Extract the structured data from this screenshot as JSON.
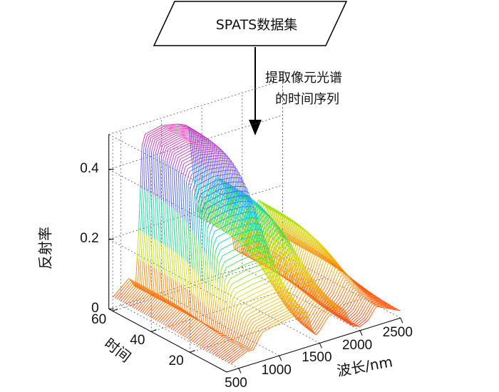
{
  "flow": {
    "dataset_label": "SPATS数据集",
    "step_label_line1": "提取像元光谱",
    "step_label_line2": "的时间序列",
    "box_stroke": "#000000",
    "arrow_color": "#000000"
  },
  "chart_data": {
    "type": "3d-waterfall",
    "title": "",
    "xlabel": "波长/nm",
    "ylabel": "时间",
    "zlabel": "反射率",
    "x_ticks": [
      "500",
      "1000",
      "1500",
      "2000",
      "2500"
    ],
    "y_ticks": [
      "20",
      "40",
      "60"
    ],
    "z_ticks": [
      "0",
      "0.2",
      "0.4"
    ],
    "xlim": [
      350,
      2500
    ],
    "ylim": [
      1,
      62
    ],
    "zlim": [
      0,
      0.5
    ],
    "n_series": 62,
    "wavelength_samples": [
      400,
      500,
      600,
      650,
      680,
      720,
      760,
      800,
      1000,
      1200,
      1300,
      1340,
      1400,
      1450,
      1500,
      1600,
      1700,
      1800,
      1900,
      2000,
      2100,
      2200,
      2300,
      2400,
      2500
    ],
    "reflectance_profile_early": [
      0.02,
      0.03,
      0.04,
      0.04,
      0.04,
      0.05,
      0.06,
      0.07,
      0.08,
      0.09,
      0.09,
      0.09,
      0.04,
      0.02,
      0.03,
      0.06,
      0.08,
      0.07,
      0.02,
      0.01,
      0.02,
      0.05,
      0.04,
      0.03,
      0.02
    ],
    "reflectance_profile_late": [
      0.03,
      0.05,
      0.07,
      0.05,
      0.04,
      0.2,
      0.44,
      0.47,
      0.48,
      0.47,
      0.46,
      0.45,
      0.3,
      0.18,
      0.2,
      0.26,
      0.28,
      0.24,
      0.06,
      0.04,
      0.1,
      0.18,
      0.15,
      0.09,
      0.05
    ],
    "colormap": [
      "#ff2000",
      "#ff8000",
      "#e0e000",
      "#40e040",
      "#00d0e0",
      "#4060ff",
      "#a040e0",
      "#ff1080"
    ],
    "grid": true
  }
}
